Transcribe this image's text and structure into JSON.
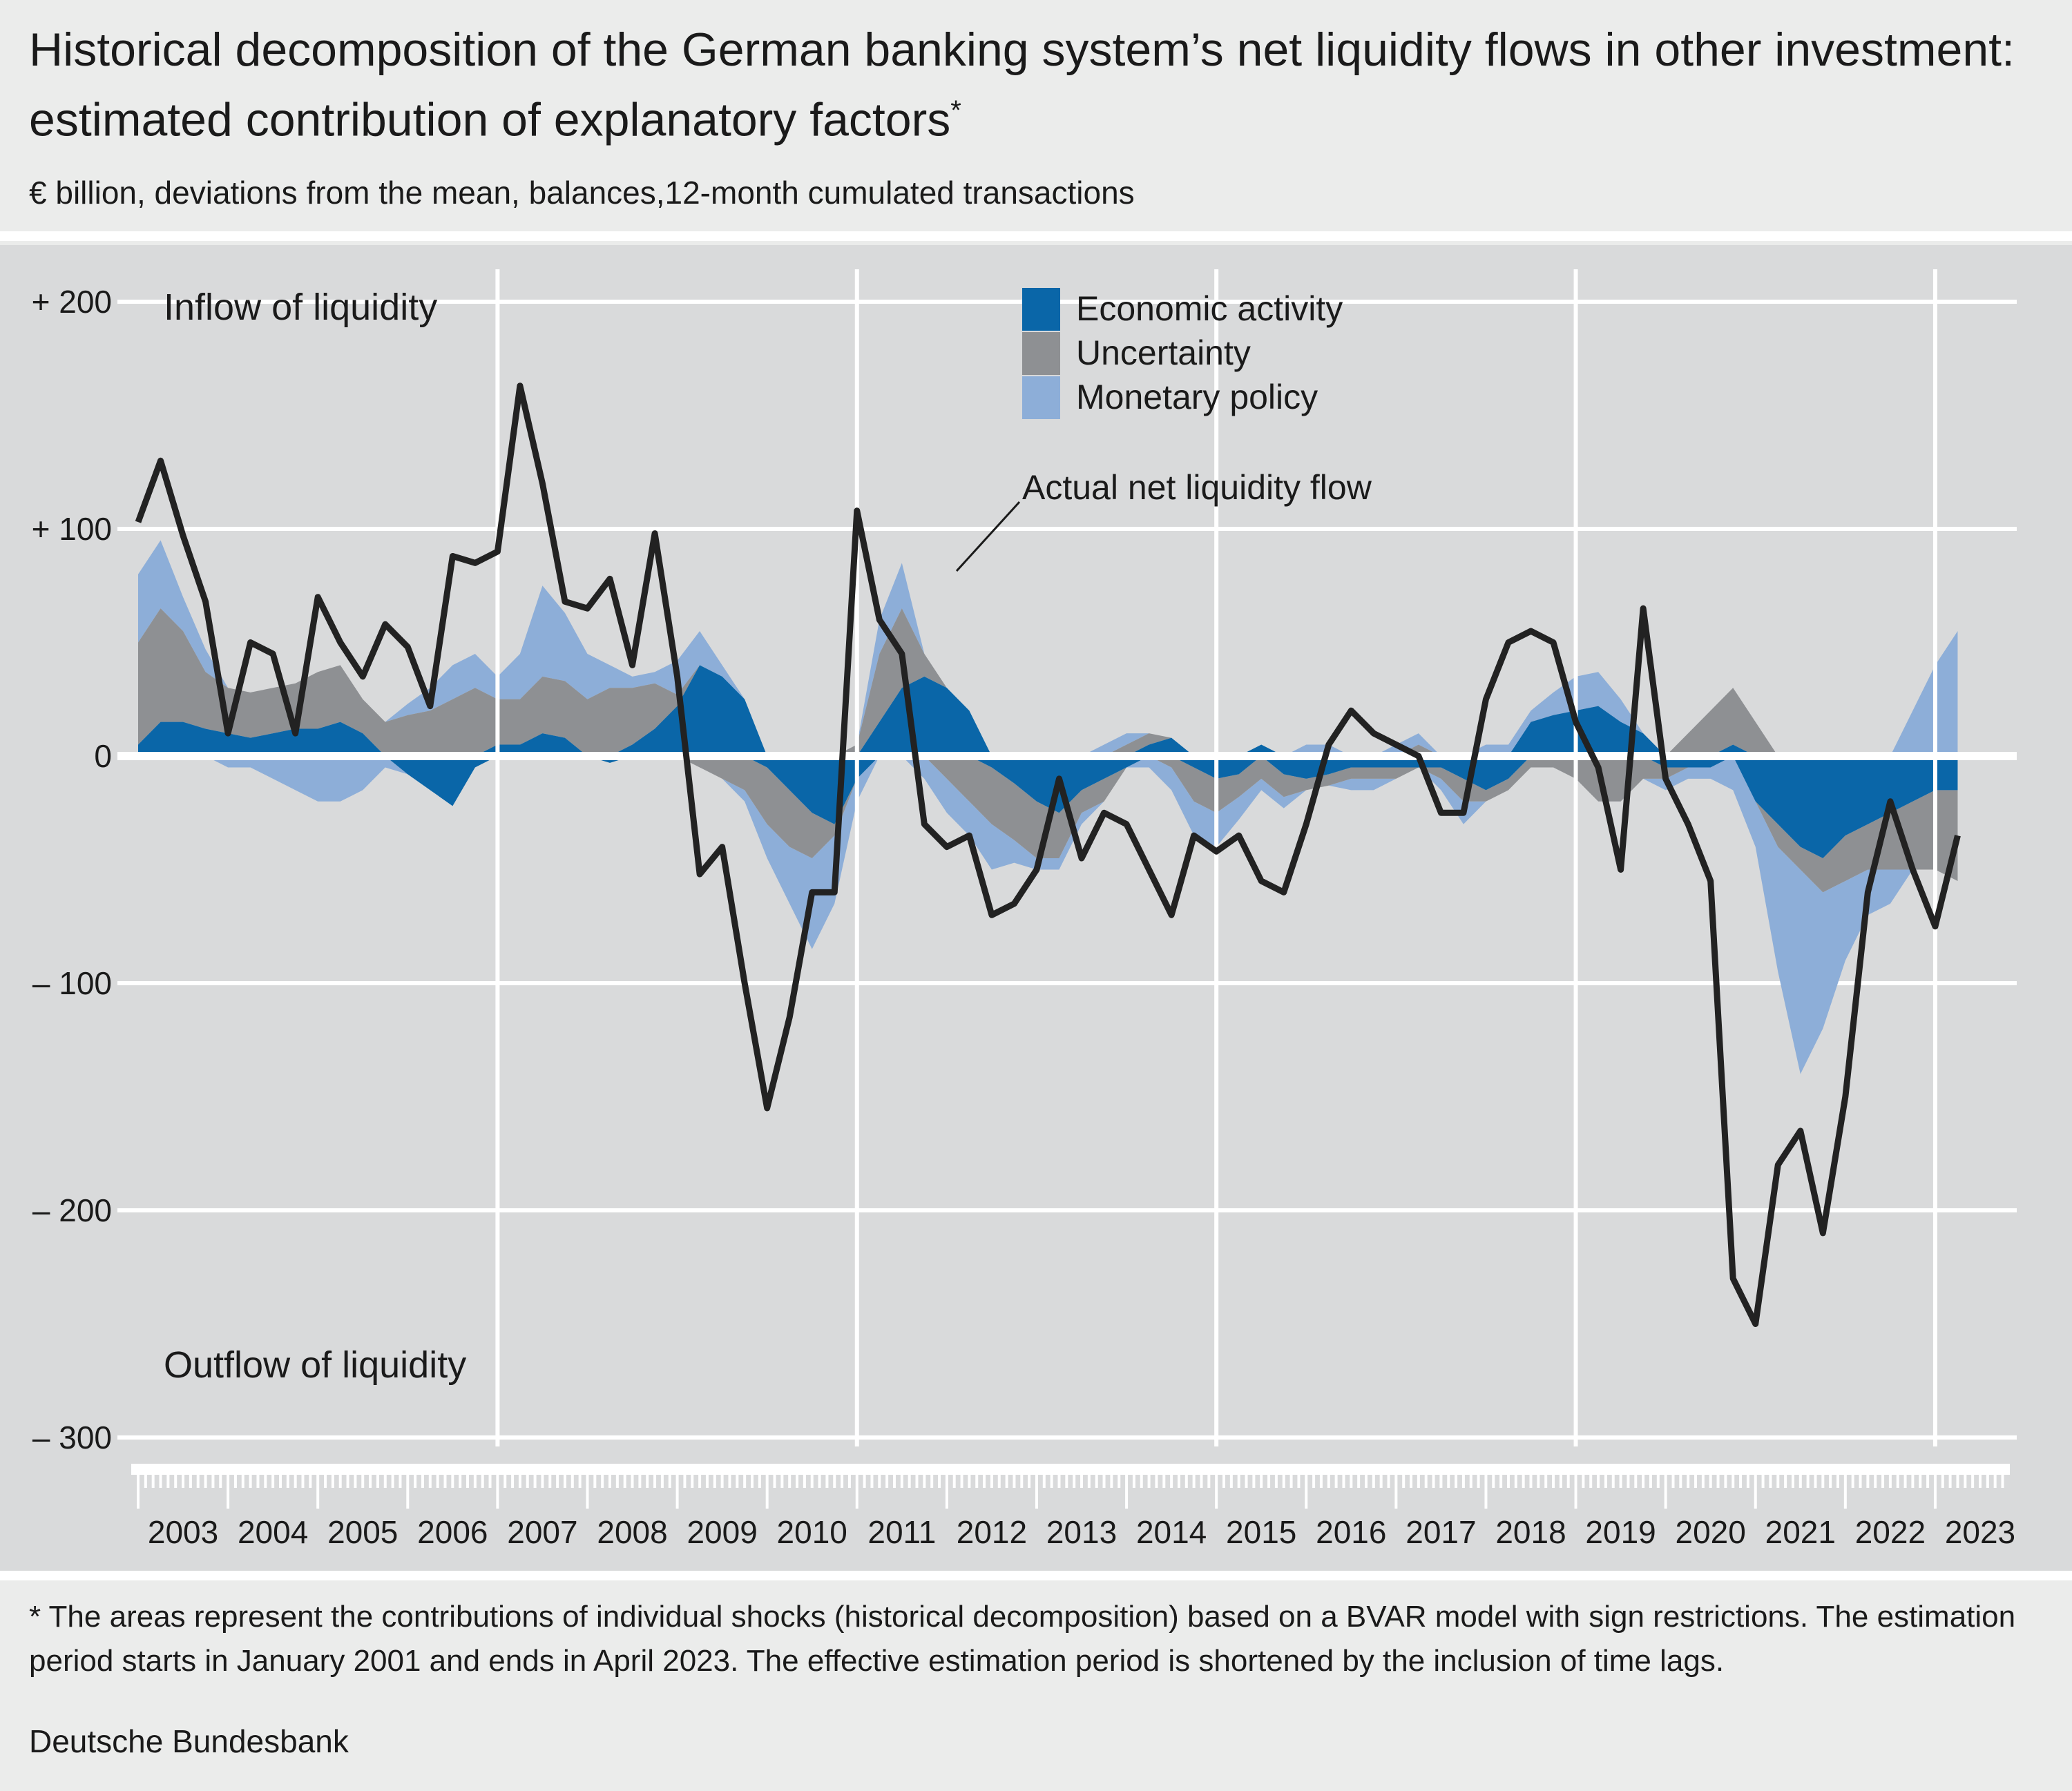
{
  "header": {
    "title": "Historical decomposition of the German banking system’s net liquidity flows in other investment: estimated contribution of explanatory factors",
    "title_marker": "*",
    "subtitle": "€ billion, deviations from the mean, balances,12-month cumulated transactions"
  },
  "footer": {
    "footnote": "* The areas represent the contributions of individual shocks (historical decomposition) based on a BVAR model with sign restrictions. The estimation period starts in January 2001 and ends in April 2023. The effective estimation period is shortened by the inclusion of time lags.",
    "source": "Deutsche Bundesbank"
  },
  "chart_data": {
    "type": "area",
    "title": "",
    "xlabel": "",
    "ylabel": "",
    "xlim": [
      2003.0,
      2023.6
    ],
    "ylim": [
      -330,
      220
    ],
    "y_ticks": [
      200,
      100,
      0,
      -100,
      -200,
      -300
    ],
    "y_tick_labels": [
      "+ 200",
      "+ 100",
      "0",
      "– 100",
      "– 200",
      "– 300"
    ],
    "x_tick_labels": [
      "2003",
      "2004",
      "2005",
      "2006",
      "2007",
      "2008",
      "2009",
      "2010",
      "2011",
      "2012",
      "2013",
      "2014",
      "2015",
      "2016",
      "2017",
      "2018",
      "2019",
      "2020",
      "2021",
      "2022",
      "2023"
    ],
    "annotations": {
      "inflow": "Inflow of liquidity",
      "outflow": "Outflow of liquidity",
      "line_label": "Actual net liquidity flow"
    },
    "legend_position": "top-center",
    "colors": {
      "economic": "#0a66a8",
      "uncertainty": "#8e9093",
      "monetary": "#8daed8",
      "line": "#222222",
      "zero": "#ffffff",
      "grid": "#ffffff"
    },
    "x": [
      2003.0,
      2003.25,
      2003.5,
      2003.75,
      2004.0,
      2004.25,
      2004.5,
      2004.75,
      2005.0,
      2005.25,
      2005.5,
      2005.75,
      2006.0,
      2006.25,
      2006.5,
      2006.75,
      2007.0,
      2007.25,
      2007.5,
      2007.75,
      2008.0,
      2008.25,
      2008.5,
      2008.75,
      2009.0,
      2009.25,
      2009.5,
      2009.75,
      2010.0,
      2010.25,
      2010.5,
      2010.75,
      2011.0,
      2011.25,
      2011.5,
      2011.75,
      2012.0,
      2012.25,
      2012.5,
      2012.75,
      2013.0,
      2013.25,
      2013.5,
      2013.75,
      2014.0,
      2014.25,
      2014.5,
      2014.75,
      2015.0,
      2015.25,
      2015.5,
      2015.75,
      2016.0,
      2016.25,
      2016.5,
      2016.75,
      2017.0,
      2017.25,
      2017.5,
      2017.75,
      2018.0,
      2018.25,
      2018.5,
      2018.75,
      2019.0,
      2019.25,
      2019.5,
      2019.75,
      2020.0,
      2020.25,
      2020.5,
      2020.75,
      2021.0,
      2021.25,
      2021.5,
      2021.75,
      2022.0,
      2022.25,
      2022.5,
      2022.75,
      2023.0,
      2023.25
    ],
    "series": [
      {
        "name": "Economic activity",
        "values": [
          5,
          15,
          15,
          12,
          10,
          8,
          10,
          12,
          12,
          15,
          10,
          0,
          -8,
          -15,
          -22,
          -5,
          5,
          5,
          10,
          8,
          0,
          -3,
          5,
          12,
          22,
          40,
          35,
          25,
          -5,
          -15,
          -25,
          -30,
          -10,
          15,
          30,
          35,
          30,
          20,
          -5,
          -12,
          -20,
          -25,
          -15,
          -10,
          -5,
          5,
          8,
          -5,
          -10,
          -8,
          5,
          -8,
          -10,
          -8,
          -5,
          -5,
          -5,
          -5,
          -5,
          -10,
          -15,
          -10,
          15,
          18,
          20,
          22,
          15,
          10,
          -5,
          -5,
          -5,
          5,
          -20,
          -30,
          -40,
          -45,
          -35,
          -30,
          -25,
          -20,
          -15,
          -15
        ]
      },
      {
        "name": "Uncertainty",
        "values": [
          45,
          50,
          40,
          25,
          20,
          20,
          20,
          20,
          25,
          25,
          15,
          15,
          18,
          20,
          25,
          30,
          20,
          20,
          25,
          25,
          25,
          30,
          25,
          20,
          5,
          -5,
          -10,
          -15,
          -25,
          -25,
          -20,
          -5,
          5,
          30,
          35,
          10,
          -10,
          -20,
          -25,
          -25,
          -25,
          -20,
          -10,
          -10,
          5,
          5,
          -5,
          -15,
          -15,
          -10,
          -10,
          -10,
          -5,
          -5,
          -5,
          -5,
          -5,
          5,
          -5,
          -10,
          -5,
          -5,
          -5,
          -5,
          -10,
          -20,
          -20,
          -10,
          -5,
          10,
          20,
          25,
          15,
          -10,
          -10,
          -15,
          -20,
          -20,
          -25,
          -30,
          -35,
          -40
        ]
      },
      {
        "name": "Monetary policy",
        "values": [
          30,
          30,
          15,
          10,
          -5,
          -5,
          -10,
          -15,
          -20,
          -20,
          -15,
          -5,
          5,
          10,
          15,
          15,
          10,
          20,
          40,
          30,
          20,
          10,
          5,
          5,
          15,
          15,
          5,
          -5,
          -15,
          -25,
          -40,
          -30,
          -10,
          15,
          20,
          -10,
          -15,
          -15,
          -20,
          -10,
          -5,
          -5,
          -5,
          5,
          5,
          -5,
          -10,
          -15,
          -15,
          -10,
          -5,
          -5,
          5,
          5,
          -5,
          -5,
          5,
          5,
          -5,
          -10,
          5,
          5,
          5,
          10,
          15,
          15,
          10,
          0,
          -5,
          -5,
          -5,
          -15,
          -20,
          -55,
          -90,
          -60,
          -35,
          -20,
          -15,
          20,
          40,
          55
        ]
      },
      {
        "name": "Actual net liquidity flow",
        "values": [
          103,
          130,
          97,
          68,
          10,
          50,
          45,
          10,
          70,
          50,
          35,
          58,
          48,
          22,
          88,
          85,
          90,
          163,
          120,
          68,
          65,
          78,
          40,
          98,
          35,
          -52,
          -40,
          -100,
          -155,
          -115,
          -60,
          -60,
          108,
          60,
          45,
          -30,
          -40,
          -35,
          -70,
          -65,
          -50,
          -10,
          -45,
          -25,
          -30,
          -50,
          -70,
          -35,
          -42,
          -35,
          -55,
          -60,
          -30,
          5,
          20,
          10,
          5,
          0,
          -25,
          -25,
          25,
          50,
          55,
          50,
          15,
          -5,
          -50,
          65,
          -10,
          -30,
          -55,
          -230,
          -250,
          -180,
          -165,
          -210,
          -150,
          -60,
          -20,
          -50,
          -75,
          -35
        ]
      }
    ]
  }
}
